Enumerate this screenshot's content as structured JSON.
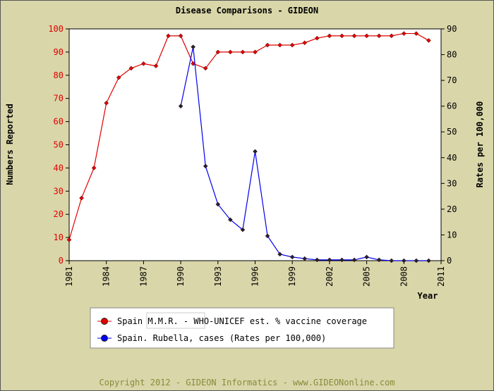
{
  "chart_data": {
    "type": "line",
    "title": "Disease Comparisons - GIDEON",
    "y_label": "Numbers Reported",
    "y2_label": "Rates per 100,000",
    "x_label": "Year",
    "footer": "Copyright 2012 - GIDEON Informatics - www.GIDEONonline.com",
    "x": [
      1981,
      1982,
      1983,
      1984,
      1985,
      1986,
      1987,
      1988,
      1989,
      1990,
      1991,
      1992,
      1993,
      1994,
      1995,
      1996,
      1997,
      1998,
      1999,
      2000,
      2001,
      2002,
      2003,
      2004,
      2005,
      2006,
      2007,
      2008,
      2009,
      2010
    ],
    "series": [
      {
        "name": "Spain M.M.R. - WHO-UNICEF est. % vaccine coverage",
        "color": "#e00000",
        "values": [
          9,
          27,
          40,
          68,
          79,
          83,
          85,
          84,
          97,
          97,
          85,
          83,
          90,
          90,
          90,
          90,
          93,
          93,
          93,
          94,
          96,
          97,
          97,
          97,
          97,
          97,
          97,
          98,
          98,
          95
        ]
      },
      {
        "name": "Spain. Rubella, cases (Rates per 100,000)",
        "color": "#0000ee",
        "axis": "y2",
        "values": [
          null,
          null,
          null,
          null,
          null,
          null,
          null,
          null,
          null,
          60,
          83,
          36.7,
          21.9,
          15.9,
          12,
          42.4,
          9.6,
          2.5,
          1.4,
          0.8,
          0.3,
          0.3,
          0.3,
          0.3,
          1.4,
          0.3,
          0,
          0,
          0,
          0
        ]
      }
    ],
    "xlim": [
      1981,
      2011
    ],
    "xticks": [
      1981,
      1984,
      1987,
      1990,
      1993,
      1996,
      1999,
      2002,
      2005,
      2008,
      2011
    ],
    "ylim": [
      0,
      100
    ],
    "yticks": [
      0,
      10,
      20,
      30,
      40,
      50,
      60,
      70,
      80,
      90,
      100
    ],
    "y2lim": [
      0,
      90
    ],
    "y2ticks": [
      0,
      10,
      20,
      30,
      40,
      50,
      60,
      70,
      80,
      90
    ],
    "grid": false
  }
}
